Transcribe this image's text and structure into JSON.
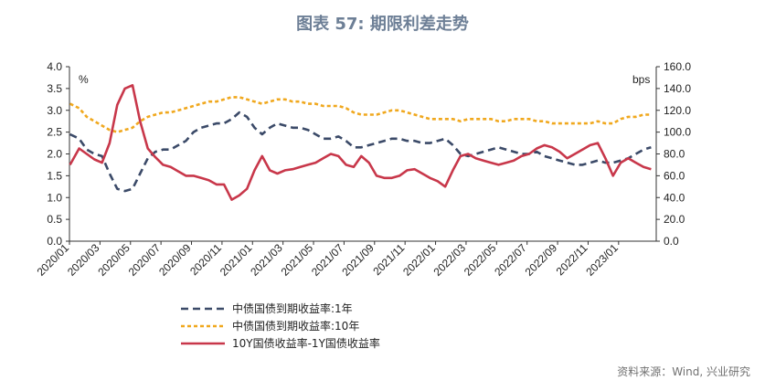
{
  "title": "图表 57: 期限利差走势",
  "source": "资料来源：Wind, 兴业研究",
  "chart_data": {
    "type": "line",
    "title": "图表 57: 期限利差走势",
    "left_axis": {
      "unit": "%",
      "min": 0.0,
      "max": 4.0,
      "ticks": [
        "0.0",
        "0.5",
        "1.0",
        "1.5",
        "2.0",
        "2.5",
        "3.0",
        "3.5",
        "4.0"
      ]
    },
    "right_axis": {
      "unit": "bps",
      "min": 0.0,
      "max": 160.0,
      "ticks": [
        "0.0",
        "20.0",
        "40.0",
        "60.0",
        "80.0",
        "100.0",
        "120.0",
        "140.0",
        "160.0"
      ]
    },
    "x_axis": {
      "min": "2020-01",
      "max": "2023-03",
      "tick_labels": [
        "2020/01",
        "2020/03",
        "2020/05",
        "2020/07",
        "2020/09",
        "2020/11",
        "2021/01",
        "2021/03",
        "2021/05",
        "2021/07",
        "2021/09",
        "2021/11",
        "2022/01",
        "2022/03",
        "2022/05",
        "2022/07",
        "2022/09",
        "2022/11",
        "2023/01"
      ]
    },
    "grid": false,
    "legend_position": "bottom",
    "x": [
      "2020-01-02",
      "2020-01-20",
      "2020-02-05",
      "2020-02-20",
      "2020-03-05",
      "2020-03-20",
      "2020-04-05",
      "2020-04-20",
      "2020-05-05",
      "2020-05-20",
      "2020-06-05",
      "2020-06-20",
      "2020-07-05",
      "2020-07-20",
      "2020-08-05",
      "2020-08-20",
      "2020-09-05",
      "2020-09-20",
      "2020-10-05",
      "2020-10-20",
      "2020-11-05",
      "2020-11-20",
      "2020-12-05",
      "2020-12-20",
      "2021-01-05",
      "2021-01-20",
      "2021-02-05",
      "2021-02-20",
      "2021-03-05",
      "2021-03-20",
      "2021-04-05",
      "2021-04-20",
      "2021-05-05",
      "2021-05-20",
      "2021-06-05",
      "2021-06-20",
      "2021-07-05",
      "2021-07-20",
      "2021-08-05",
      "2021-08-20",
      "2021-09-05",
      "2021-09-20",
      "2021-10-05",
      "2021-10-20",
      "2021-11-05",
      "2021-11-20",
      "2021-12-05",
      "2021-12-20",
      "2022-01-05",
      "2022-01-20",
      "2022-02-05",
      "2022-02-20",
      "2022-03-05",
      "2022-03-20",
      "2022-04-05",
      "2022-04-20",
      "2022-05-05",
      "2022-05-20",
      "2022-06-05",
      "2022-06-20",
      "2022-07-05",
      "2022-07-20",
      "2022-08-05",
      "2022-08-20",
      "2022-09-05",
      "2022-09-20",
      "2022-10-05",
      "2022-10-20",
      "2022-11-05",
      "2022-11-20",
      "2022-12-05",
      "2022-12-20",
      "2023-01-05",
      "2023-01-20",
      "2023-02-05",
      "2023-02-20",
      "2023-03-05"
    ],
    "series": [
      {
        "name": "中债国债到期收益率:1年",
        "axis": "left",
        "color": "#3b4a68",
        "dash": "dashed",
        "values": [
          2.45,
          2.35,
          2.1,
          2.0,
          1.95,
          1.55,
          1.2,
          1.15,
          1.2,
          1.55,
          1.9,
          2.05,
          2.1,
          2.1,
          2.2,
          2.3,
          2.5,
          2.6,
          2.65,
          2.7,
          2.7,
          2.8,
          2.95,
          2.85,
          2.6,
          2.45,
          2.6,
          2.7,
          2.65,
          2.6,
          2.6,
          2.55,
          2.45,
          2.35,
          2.35,
          2.4,
          2.3,
          2.15,
          2.15,
          2.2,
          2.25,
          2.3,
          2.35,
          2.35,
          2.3,
          2.3,
          2.25,
          2.25,
          2.3,
          2.35,
          2.2,
          2.0,
          1.95,
          2.0,
          2.05,
          2.1,
          2.15,
          2.1,
          2.05,
          2.0,
          2.0,
          2.05,
          1.95,
          1.9,
          1.85,
          1.8,
          1.75,
          1.75,
          1.8,
          1.85,
          1.8,
          1.8,
          1.85,
          1.9,
          2.0,
          2.1,
          2.15
        ]
      },
      {
        "name": "中债国债到期收益率:10年",
        "axis": "left",
        "color": "#f0a81e",
        "dash": "dashed",
        "values": [
          3.15,
          3.05,
          2.85,
          2.75,
          2.65,
          2.55,
          2.5,
          2.55,
          2.6,
          2.75,
          2.85,
          2.9,
          2.95,
          2.95,
          3.0,
          3.05,
          3.1,
          3.15,
          3.2,
          3.2,
          3.25,
          3.3,
          3.3,
          3.25,
          3.2,
          3.15,
          3.2,
          3.25,
          3.25,
          3.2,
          3.2,
          3.15,
          3.15,
          3.1,
          3.1,
          3.1,
          3.05,
          2.95,
          2.9,
          2.9,
          2.9,
          2.95,
          3.0,
          3.0,
          2.95,
          2.9,
          2.85,
          2.8,
          2.8,
          2.8,
          2.8,
          2.75,
          2.8,
          2.8,
          2.8,
          2.8,
          2.75,
          2.75,
          2.8,
          2.8,
          2.8,
          2.75,
          2.75,
          2.7,
          2.7,
          2.7,
          2.7,
          2.7,
          2.7,
          2.75,
          2.7,
          2.7,
          2.8,
          2.85,
          2.85,
          2.9,
          2.9
        ]
      },
      {
        "name": "10Y国债收益率-1Y国债收益率",
        "axis": "right",
        "color": "#c8374a",
        "dash": "solid",
        "values": [
          70,
          85,
          80,
          75,
          72,
          90,
          125,
          140,
          143,
          110,
          85,
          77,
          70,
          68,
          64,
          60,
          60,
          58,
          56,
          52,
          52,
          38,
          42,
          48,
          65,
          78,
          65,
          62,
          65,
          66,
          68,
          70,
          72,
          76,
          80,
          78,
          70,
          68,
          78,
          72,
          60,
          58,
          58,
          60,
          65,
          66,
          62,
          58,
          55,
          50,
          65,
          78,
          80,
          76,
          74,
          72,
          70,
          72,
          74,
          78,
          80,
          85,
          88,
          86,
          82,
          76,
          80,
          84,
          88,
          90,
          76,
          60,
          72,
          76,
          72,
          68,
          66
        ]
      }
    ]
  },
  "legend": {
    "items": [
      "中债国债到期收益率:1年",
      "中债国债到期收益率:10年",
      "10Y国债收益率-1Y国债收益率"
    ]
  }
}
